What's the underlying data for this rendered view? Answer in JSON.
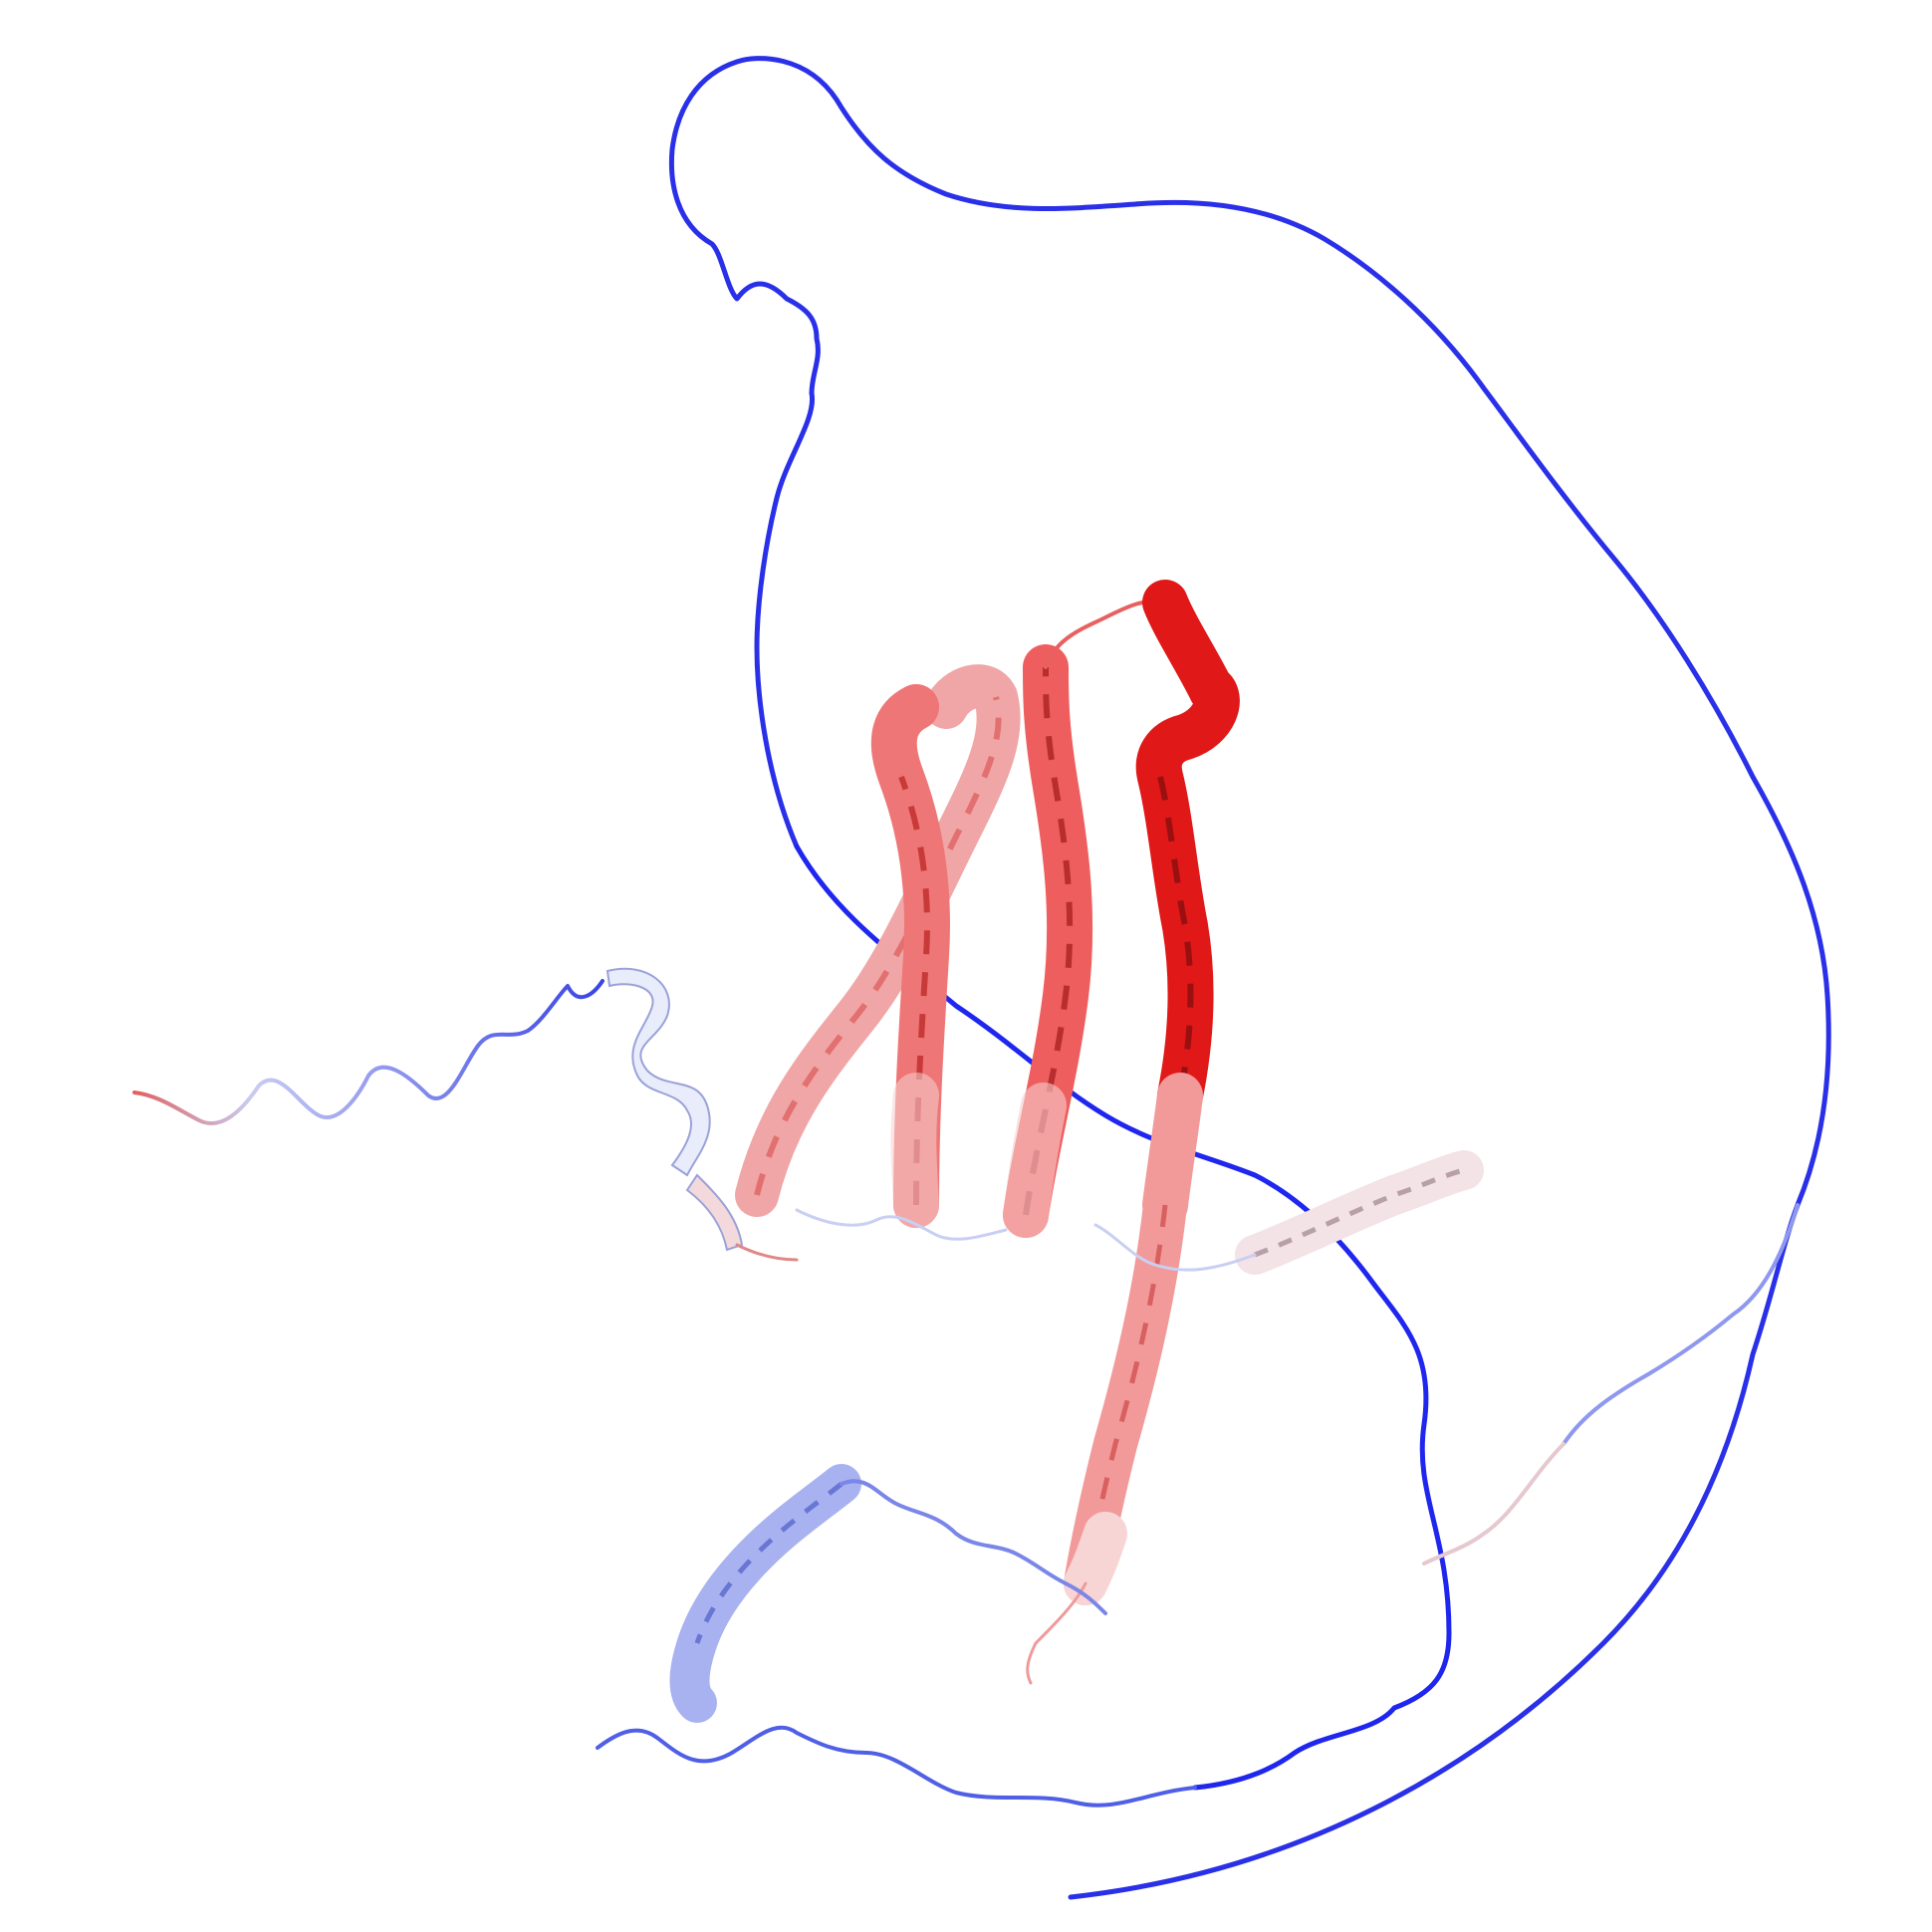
{
  "image": {
    "kind": "protein-structure-ribbon-render",
    "background": "#ffffff",
    "coloring": {
      "scheme": "blue-white-red",
      "low": "#1a1aff",
      "mid": "#ffffff",
      "high": "#ff0000"
    }
  },
  "regions": [
    {
      "id": "n-terminal-tail",
      "type": "coil",
      "color": "#5a6ae8"
    },
    {
      "id": "short-helix-left",
      "type": "helix",
      "color": "#e8ecfb"
    },
    {
      "id": "helix-bundle-1",
      "type": "helix",
      "color": "#f08a8a"
    },
    {
      "id": "helix-bundle-2",
      "type": "helix",
      "color": "#ee5c5c"
    },
    {
      "id": "helix-bundle-3",
      "type": "helix",
      "color": "#e84848"
    },
    {
      "id": "helix-bundle-4",
      "type": "helix",
      "color": "#e01818"
    },
    {
      "id": "long-helix-lower",
      "type": "helix",
      "color": "#f29a9a"
    },
    {
      "id": "helix-right-small",
      "type": "helix",
      "color": "#f3e7ea"
    },
    {
      "id": "helix-lower-left",
      "type": "helix",
      "color": "#a8b2f0"
    },
    {
      "id": "long-loop",
      "type": "coil",
      "color": "#2424ee"
    }
  ]
}
